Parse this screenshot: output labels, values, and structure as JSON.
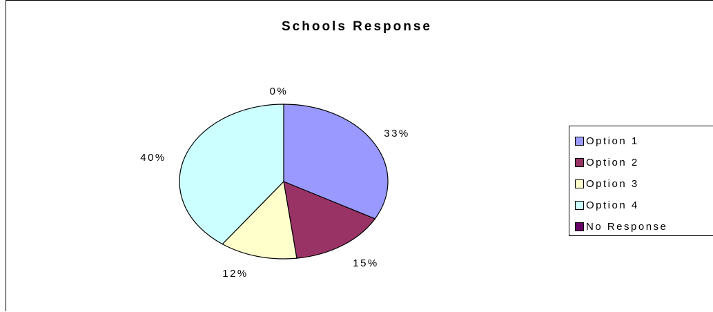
{
  "chart_data": {
    "type": "pie",
    "title": "Schools Response",
    "categories": [
      "Option 1",
      "Option 2",
      "Option 3",
      "Option 4",
      "No Response"
    ],
    "values": [
      33,
      15,
      12,
      40,
      0
    ],
    "labels": [
      "33%",
      "15%",
      "12%",
      "40%",
      "0%"
    ],
    "colors": [
      "#9999FF",
      "#993366",
      "#FFFFCC",
      "#CCFFFF",
      "#660066"
    ],
    "legend": "right"
  }
}
